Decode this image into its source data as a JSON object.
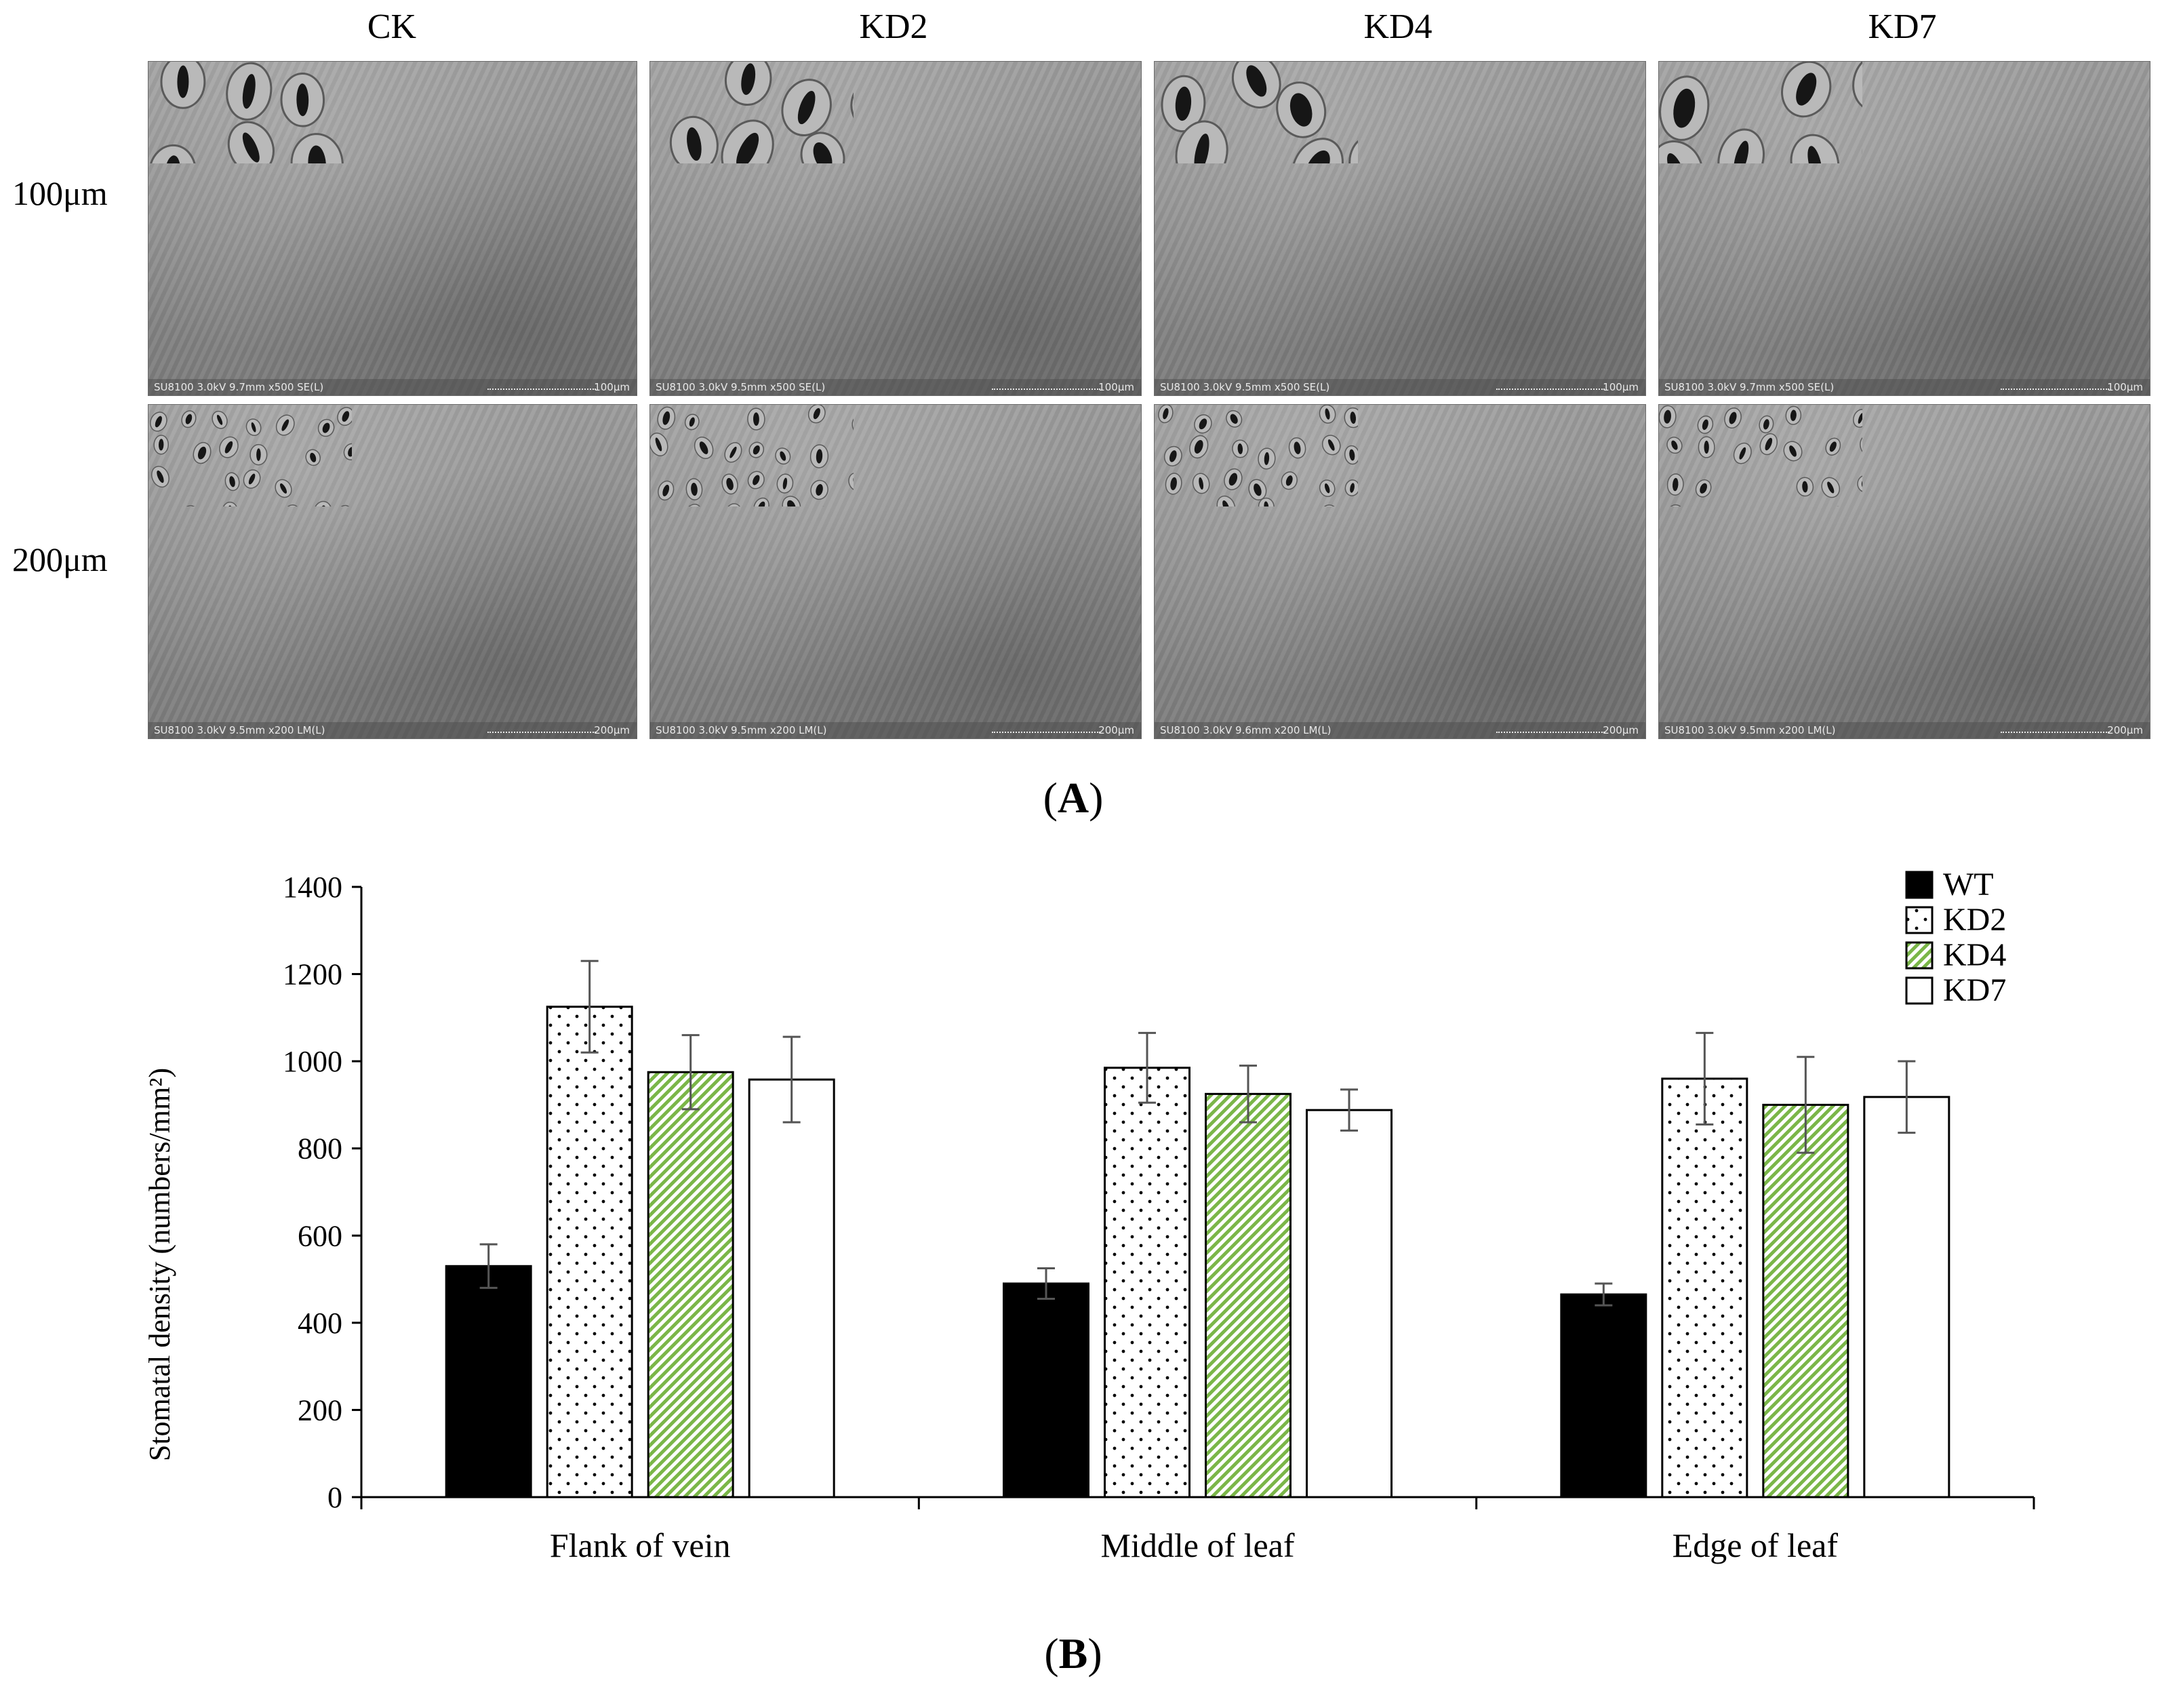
{
  "panel_a": {
    "label": "A",
    "columns": [
      "CK",
      "KD2",
      "KD4",
      "KD7"
    ],
    "rows": [
      "100μm",
      "200μm"
    ],
    "images": [
      {
        "meta": "SU8100 3.0kV 9.7mm x500 SE(L)",
        "scale": "100μm"
      },
      {
        "meta": "SU8100 3.0kV 9.5mm x500 SE(L)",
        "scale": "100μm"
      },
      {
        "meta": "SU8100 3.0kV 9.5mm x500 SE(L)",
        "scale": "100μm"
      },
      {
        "meta": "SU8100 3.0kV 9.7mm x500 SE(L)",
        "scale": "100μm"
      },
      {
        "meta": "SU8100 3.0kV 9.5mm x200 LM(L)",
        "scale": "200μm"
      },
      {
        "meta": "SU8100 3.0kV 9.5mm x200 LM(L)",
        "scale": "200μm"
      },
      {
        "meta": "SU8100 3.0kV 9.6mm x200 LM(L)",
        "scale": "200μm"
      },
      {
        "meta": "SU8100 3.0kV 9.5mm x200 LM(L)",
        "scale": "200μm"
      }
    ]
  },
  "panel_b": {
    "label": "B"
  },
  "chart_data": {
    "type": "bar",
    "categories": [
      "Flank of vein",
      "Middle of leaf",
      "Edge of leaf"
    ],
    "ylabel": "Stomatal density (numbers/mm²)",
    "ylim": [
      0,
      1400
    ],
    "yticks": [
      "0",
      "200",
      "400",
      "600",
      "800",
      "1000",
      "1200",
      "1400"
    ],
    "legend_position": "top-right",
    "series": [
      {
        "name": "WT",
        "values": [
          530,
          490,
          465
        ],
        "errors": [
          50,
          35,
          25
        ],
        "fill": "solid-black"
      },
      {
        "name": "KD2",
        "values": [
          1125,
          985,
          960
        ],
        "errors": [
          105,
          80,
          105
        ],
        "fill": "dotted"
      },
      {
        "name": "KD4",
        "values": [
          975,
          925,
          900
        ],
        "errors": [
          85,
          65,
          110
        ],
        "fill": "green-hatch"
      },
      {
        "name": "KD7",
        "values": [
          958,
          888,
          918
        ],
        "errors": [
          98,
          47,
          82
        ],
        "fill": "white"
      }
    ],
    "colors": {
      "hatch": "#7ab648",
      "bar_outline": "#000000",
      "error_bar": "#555555"
    }
  }
}
